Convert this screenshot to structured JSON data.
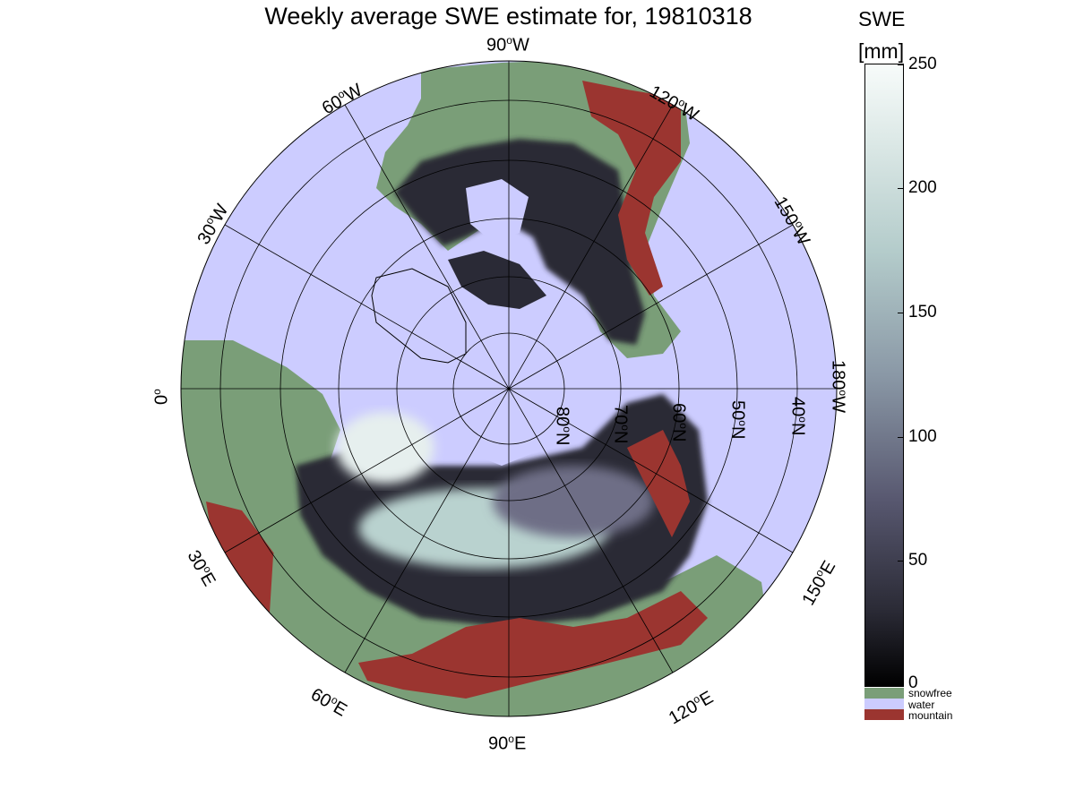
{
  "title": "Weekly average SWE estimate for, 19810318",
  "colorbar": {
    "title_line1": "SWE",
    "title_line2": "[mm]",
    "ticks": [
      "250",
      "200",
      "150",
      "100",
      "50",
      "0"
    ],
    "range": [
      0,
      250
    ],
    "gradient_colors": [
      "#000000",
      "#585870",
      "#8a98a6",
      "#b4cccb",
      "#f7fbfa"
    ],
    "categories": [
      {
        "label": "snowfree",
        "color": "#7a9e78"
      },
      {
        "label": "water",
        "color": "#ccccff"
      },
      {
        "label": "mountain",
        "color": "#9b3530"
      }
    ]
  },
  "longitude_labels": {
    "l90w": "90",
    "l120w": "120",
    "l60w": "60",
    "l150w": "150",
    "l30w": "30",
    "l180w": "180",
    "l0": "0",
    "l150e": "150",
    "l30e": "30",
    "l120e": "120",
    "l60e": "60",
    "l90e": "90",
    "deg_w": "W",
    "deg_e": "E",
    "deg_sym": "o"
  },
  "latitude_labels": [
    "80",
    "70",
    "60",
    "50",
    "40"
  ],
  "lat_suffix": "N",
  "colors": {
    "water": "#ccccff",
    "snowfree": "#7a9e78",
    "mountain": "#9b3530",
    "snow_deep": "#1e1e28",
    "snow_mid": "#54546a",
    "snow_high": "#b9d2cf"
  }
}
